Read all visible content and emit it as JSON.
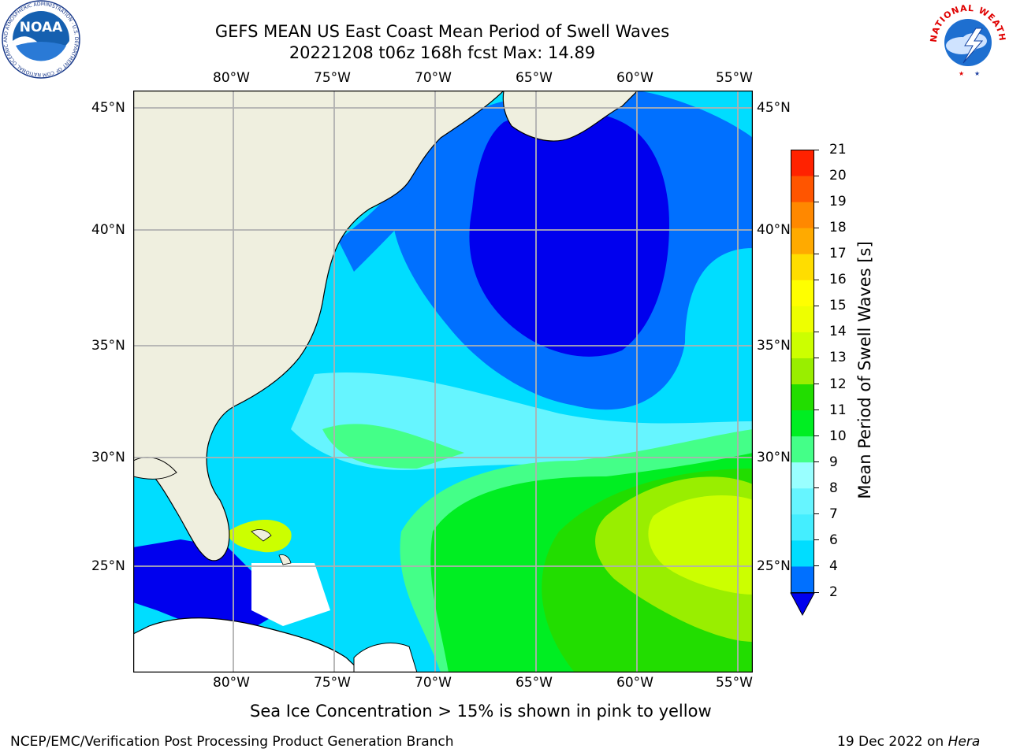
{
  "title": {
    "line1": "GEFS MEAN US East Coast Mean Period of Swell Waves",
    "line2": "20221208 t06z 168h fcst   Max: 14.89"
  },
  "logos": {
    "left": {
      "name": "NOAA",
      "ring_text": "NATIONAL OCEANIC AND ATMOSPHERIC ADMINISTRATION · U.S. DEPARTMENT OF COMMERCE"
    },
    "right": {
      "ring_text": "NATIONAL WEATHER SERVICE"
    }
  },
  "map": {
    "lon_ticks": [
      "80°W",
      "75°W",
      "70°W",
      "65°W",
      "60°W",
      "55°W"
    ],
    "lat_ticks": [
      "45°N",
      "40°N",
      "35°N",
      "30°N",
      "25°N"
    ],
    "colors": {
      "land": "#efefdf",
      "grid": "#b0b0b0",
      "coast": "#000000",
      "no_data": "#ffffff"
    }
  },
  "colorbar": {
    "label": "Mean Period of Swell Waves [s]",
    "ticks": [
      "2",
      "4",
      "6",
      "7",
      "8",
      "9",
      "10",
      "11",
      "12",
      "13",
      "14",
      "15",
      "16",
      "17",
      "18",
      "19",
      "20",
      "21"
    ],
    "colors": [
      "#0070ff",
      "#00ddff",
      "#44eeff",
      "#66f5ff",
      "#99ffff",
      "#44ff88",
      "#00ee22",
      "#22dd00",
      "#99ee00",
      "#ccff00",
      "#eeff00",
      "#ffff00",
      "#ffdd00",
      "#ffaa00",
      "#ff8800",
      "#ff5500",
      "#ff2200",
      "#ff0000"
    ],
    "under_color": "#0000ee"
  },
  "caption": "Sea Ice Concentration > 15% is shown in pink to yellow",
  "footer": {
    "left": "NCEP/EMC/Verification Post Processing Product Generation Branch",
    "date": "19 Dec 2022 on ",
    "host": "Hera"
  }
}
